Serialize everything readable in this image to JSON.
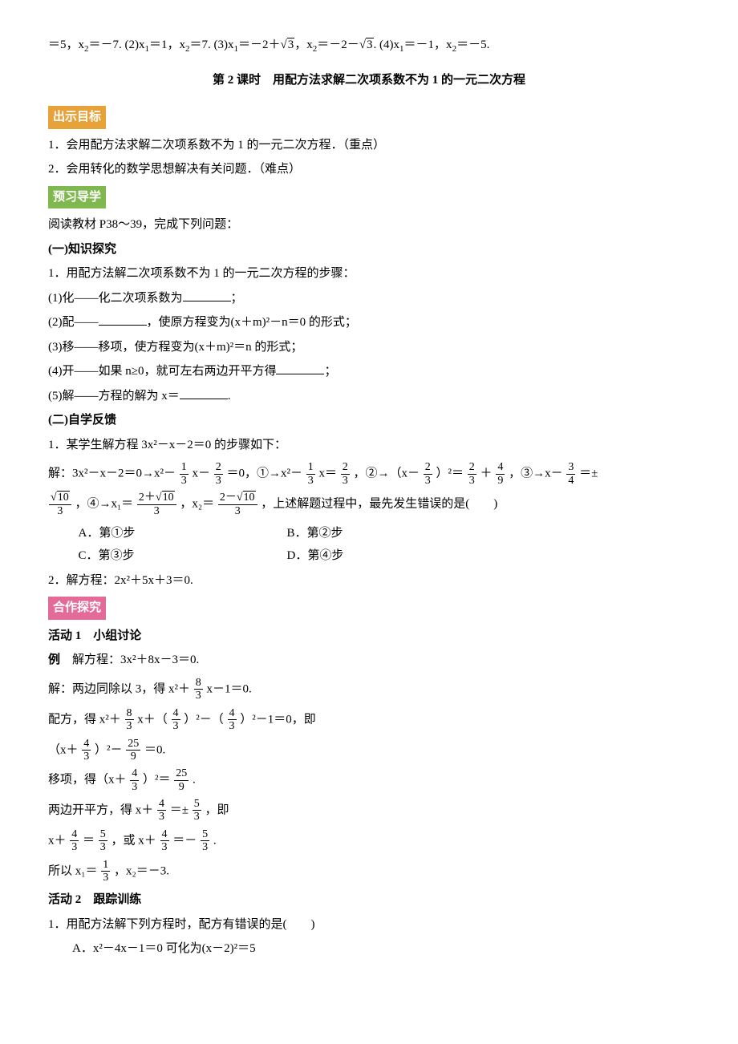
{
  "topline": "＝5，x₂＝－7. (2)x₁＝1，x₂＝7. (3)x₁＝－2＋√3，x₂＝－2－√3. (4)x₁＝－1，x₂＝－5.",
  "lesson_title": "第 2 课时　用配方法求解二次项系数不为 1 的一元二次方程",
  "tags": {
    "goal": "出示目标",
    "preview": "预习导学",
    "coop": "合作探究"
  },
  "goals": [
    "1．会用配方法求解二次项系数不为 1 的一元二次方程．（重点）",
    "2．会用转化的数学思想解决有关问题．（难点）"
  ],
  "preview_intro": "阅读教材 P38～39，完成下列问题：",
  "section_a": "(一)知识探究",
  "a_intro": "1．用配方法解二次项系数不为 1 的一元二次方程的步骤：",
  "a_steps": {
    "s1a": "(1)化——化二次项系数为",
    "s1b": "；",
    "s2a": "(2)配——",
    "s2b": "，使原方程变为(x＋m)²－n＝0 的形式；",
    "s3": "(3)移——移项，使方程变为(x＋m)²＝n 的形式；",
    "s4a": "(4)开——如果 n≥0，就可左右两边开平方得",
    "s4b": "；",
    "s5a": "(5)解——方程的解为 x＝",
    "s5b": "."
  },
  "section_b": "(二)自学反馈",
  "b1_intro": "1．某学生解方程 3x²－x－2＝0 的步骤如下：",
  "b1_line1_pre": "解：3x²－x－2＝0→x²－",
  "b1_line1_mid1": "x－",
  "b1_line1_mid2": "＝0，①→x²－",
  "b1_line1_mid3": "x＝",
  "b1_line1_mid4": "，②→（x－",
  "b1_line1_mid5": "）²＝",
  "b1_line1_mid6": "＋",
  "b1_line1_mid7": "，③→x－",
  "b1_line1_mid8": "＝±",
  "b1_line2_mid1": "，④→x₁＝",
  "b1_line2_mid2": "，x₂＝",
  "b1_line2_tail": "，上述解题过程中，最先发生错误的是(　　)",
  "b1_choices": {
    "A": "A．第①步",
    "B": "B．第②步",
    "C": "C．第③步",
    "D": "D．第④步"
  },
  "b2": "2．解方程：2x²＋5x＋3＝0.",
  "act1": "活动 1　小组讨论",
  "ex_label": "例",
  "ex_text": "　解方程：3x²＋8x－3＝0.",
  "sol": {
    "l1a": "解：两边同除以 3，得 x²＋",
    "l1b": "x－1＝0.",
    "l2a": "配方，得 x²＋",
    "l2b": "x＋（",
    "l2c": "）²－（",
    "l2d": "）²－1＝0，即",
    "l3a": "（x＋",
    "l3b": "）²－",
    "l3c": "＝0.",
    "l4a": "移项，得（x＋",
    "l4b": "）²＝",
    "l4c": ".",
    "l5a": "两边开平方，得 x＋",
    "l5b": "＝±",
    "l5c": "，即",
    "l6a": "x＋",
    "l6b": "＝",
    "l6c": "，或 x＋",
    "l6d": "＝－",
    "l6e": ".",
    "l7a": "所以 x₁＝",
    "l7b": "，x₂＝－3."
  },
  "act2": "活动 2　跟踪训练",
  "q1": "1．用配方法解下列方程时，配方有错误的是(　　)",
  "q1A": "A．x²－4x－1＝0 可化为(x－2)²＝5",
  "frac": {
    "n4": "4",
    "n3": "3",
    "n8": "8",
    "n25": "25",
    "n9": "9",
    "n5": "5",
    "n1": "1",
    "n2": "2",
    "sqrt10": "10",
    "sqrt3": "3",
    "expr_2p": "2＋",
    "expr_2m": "2－"
  }
}
